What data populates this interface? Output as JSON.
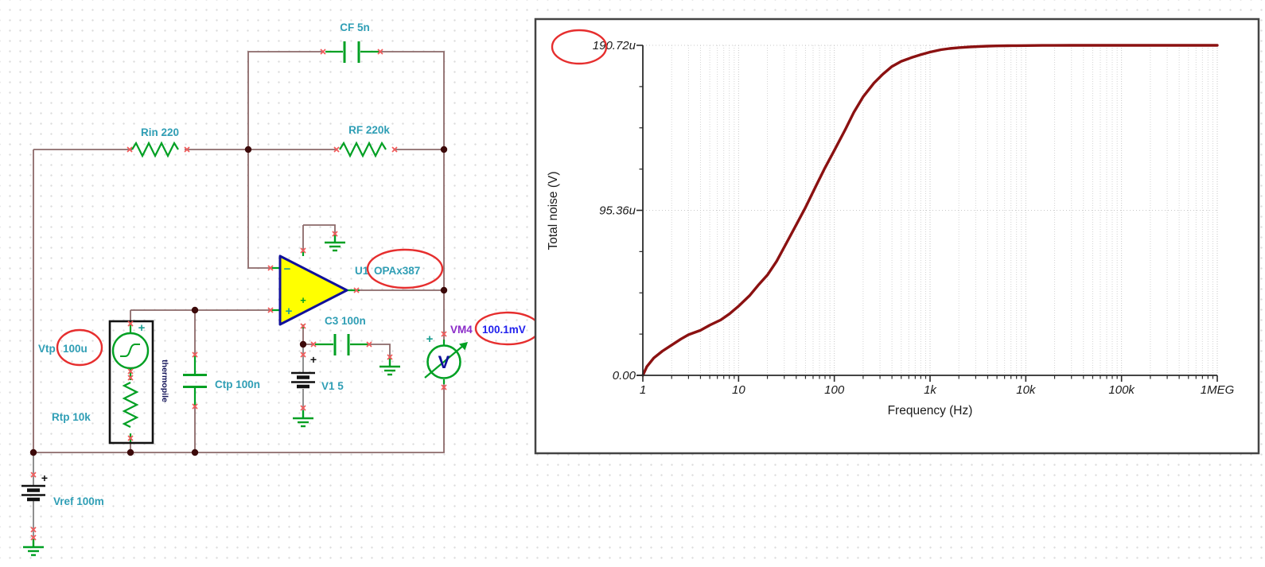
{
  "schematic": {
    "labels": {
      "cf": "CF 5n",
      "rin": "Rin 220",
      "rf": "RF 220k",
      "opamp_ref": "U1",
      "opamp_part": "OPAx387",
      "c3": "C3 100n",
      "v1": "V1 5",
      "vm_ref": "VM4",
      "vm_value": "100.1mV",
      "vtp_ref": "Vtp",
      "vtp_value": "100u",
      "rtp": "Rtp 10k",
      "ctp": "Ctp 100n",
      "thermopile": "thermopile",
      "vref": "Vref 100m"
    },
    "signs": {
      "minus": "−",
      "plus": "+",
      "voltmeter_letter": "V"
    },
    "colors": {
      "wire": "#8c6a6a",
      "component_green": "#00a023",
      "label_teal": "#2f9eb5",
      "value_blue": "#2222ee",
      "vm_purple": "#8b2bc9",
      "node_dot": "#3c0a0a",
      "pin_mark_red": "#f05a5a",
      "annotation_red": "#e62e2e",
      "opamp_fill": "#ffff00",
      "opamp_border": "#10109b",
      "battery_stem_gray": "#8f8f8f"
    }
  },
  "chart_data": {
    "type": "line",
    "title": "",
    "xlabel": "Frequency (Hz)",
    "ylabel": "Total noise (V)",
    "x_scale": "log",
    "xlim": [
      1,
      1000000
    ],
    "ylim": [
      0,
      190.72
    ],
    "y_unit": "uV",
    "x_ticks": [
      "1",
      "10",
      "100",
      "1k",
      "10k",
      "100k",
      "1MEG"
    ],
    "x_tick_values": [
      1,
      10,
      100,
      1000,
      10000,
      100000,
      1000000
    ],
    "y_ticks": [
      "0.00",
      "95.36u",
      "190.72u"
    ],
    "y_tick_values": [
      0,
      95.36,
      190.72
    ],
    "y_minor_divisions": 8,
    "grid": "dotted",
    "annotated_max": "190.72u",
    "series": [
      {
        "name": "Total noise",
        "color": "#8b1111",
        "x": [
          1,
          1.1,
          1.3,
          1.6,
          2,
          2.5,
          3,
          4,
          5,
          6.5,
          8,
          10,
          13,
          16,
          20,
          25,
          32,
          40,
          50,
          65,
          80,
          100,
          130,
          160,
          200,
          260,
          320,
          400,
          500,
          650,
          800,
          1000,
          1300,
          1600,
          2000,
          2600,
          3200,
          4000,
          5000,
          6500,
          8000,
          10000,
          15000,
          20000,
          30000,
          50000,
          100000,
          200000,
          500000,
          1000000
        ],
        "y": [
          0,
          5,
          10,
          14,
          17.5,
          21,
          23.5,
          26,
          29,
          32,
          35.5,
          40,
          46,
          52,
          58,
          66,
          77,
          87,
          97,
          110,
          120,
          130,
          142,
          152,
          161,
          169,
          174,
          178.5,
          181.5,
          183.8,
          185.3,
          186.8,
          188.2,
          188.9,
          189.4,
          189.8,
          190.05,
          190.25,
          190.4,
          190.5,
          190.55,
          190.6,
          190.66,
          190.69,
          190.7,
          190.71,
          190.72,
          190.72,
          190.72,
          190.72
        ]
      }
    ]
  }
}
